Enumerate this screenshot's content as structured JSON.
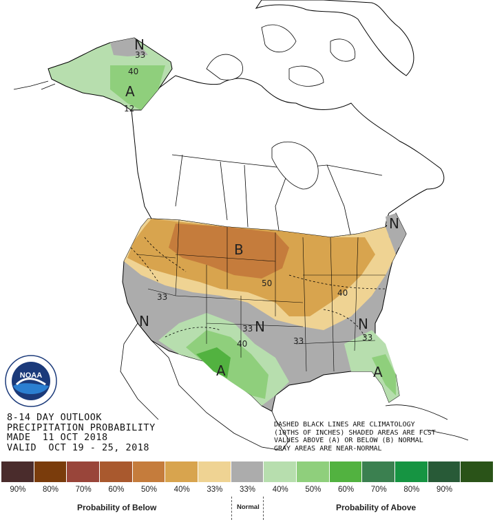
{
  "outlook": {
    "line1": "8-14 DAY OUTLOOK",
    "line2": "PRECIPITATION PROBABILITY",
    "line3": "MADE  11 OCT 2018",
    "line4": "VALID  OCT 19 - 25, 2018"
  },
  "notes": {
    "line1": "DASHED BLACK LINES ARE CLIMATOLOGY",
    "line2": "(10THS OF INCHES) SHADED AREAS ARE FCST",
    "line3": "VALUES ABOVE (A) OR BELOW (B) NORMAL",
    "line4": "GRAY AREAS ARE NEAR-NORMAL"
  },
  "logo": {
    "text": "NOAA"
  },
  "map_labels": {
    "alaska_n": "N",
    "alaska_33": "33",
    "alaska_40": "40",
    "alaska_a": "A",
    "alaska_12": "12",
    "midwest_b": "B",
    "midwest_50": "50",
    "east_40": "40",
    "west_33": "33",
    "west_n": "N",
    "plains_n": "N",
    "plains_33": "33",
    "plains_40": "40",
    "southeast_33": "33",
    "southeast_n": "N",
    "southeast_33b": "33",
    "texas_a": "A",
    "florida_a": "A",
    "ne_n": "N"
  },
  "legend": {
    "swatches": [
      "#4a2c2c",
      "#7a3c0c",
      "#99453a",
      "#a9592e",
      "#c57c3c",
      "#d8a44e",
      "#efd393",
      "#acacac",
      "#b7deae",
      "#8fcf7c",
      "#52b240",
      "#3b8050",
      "#169442",
      "#285a37",
      "#2a5318"
    ],
    "ticks": [
      "90%",
      "80%",
      "70%",
      "60%",
      "50%",
      "40%",
      "33%",
      "33%",
      "40%",
      "50%",
      "60%",
      "70%",
      "80%",
      "90%",
      ""
    ],
    "below_label": "Probability of Below",
    "normal_label": "Normal",
    "above_label": "Probability of Above"
  },
  "colors": {
    "below_33": "#efd393",
    "below_40": "#d8a44e",
    "below_50": "#c57c3c",
    "normal": "#acacac",
    "above_33": "#b7deae",
    "above_40": "#8fcf7c",
    "above_50": "#52b240"
  }
}
